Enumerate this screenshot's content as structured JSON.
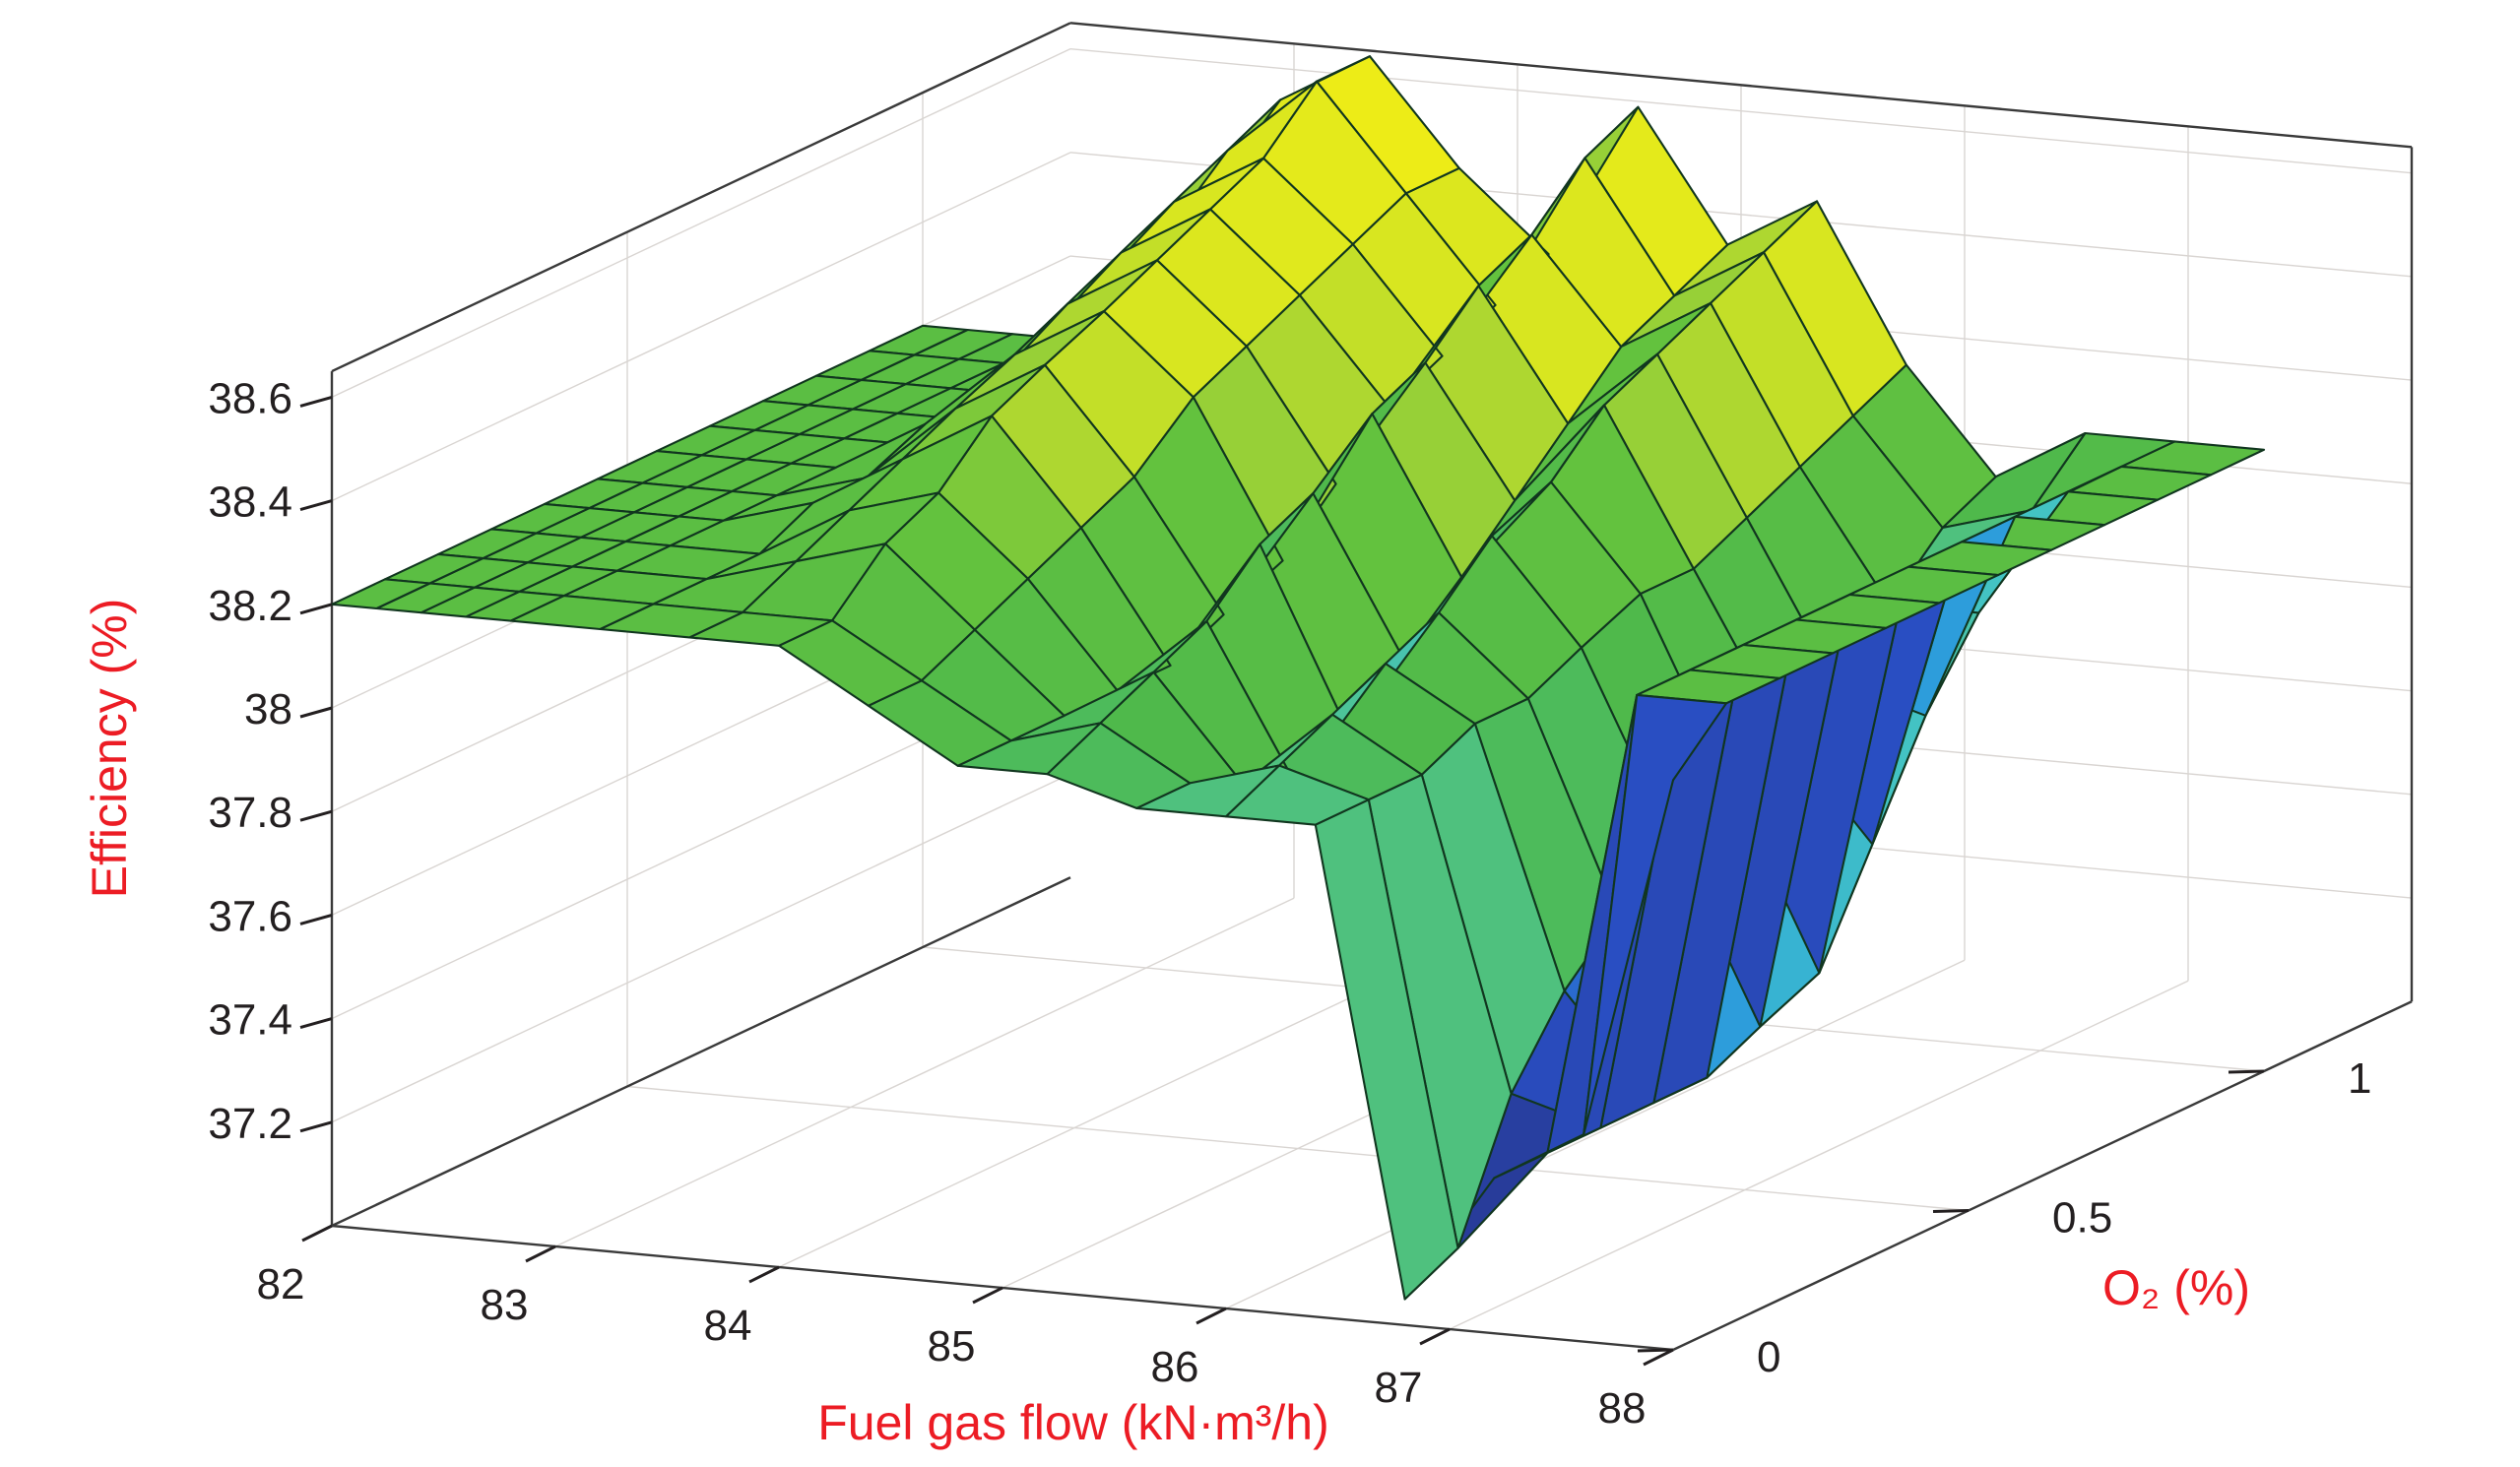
{
  "figure": {
    "background": "#ffffff",
    "frame_color": "#3a3a3a",
    "grid_color": "#d9d5d2"
  },
  "chart_data": {
    "type": "surface",
    "title": "",
    "xlabel": "Fuel gas flow (kN·m³/h)",
    "ylabel": "O₂ (%)",
    "zlabel": "Efficiency (%)",
    "axis_label_color": "#ec1c24",
    "tick_color": "#231f20",
    "mesh_line_color": "#11361f",
    "grid": true,
    "legend": "none",
    "xlim": [
      82,
      88
    ],
    "ylim": [
      0,
      1
    ],
    "zlim": [
      37.0,
      38.65
    ],
    "xticks": [
      "82",
      "83",
      "84",
      "85",
      "86",
      "87",
      "88"
    ],
    "yticks": [
      "0",
      "0.5",
      "1"
    ],
    "zticks": [
      "37.2",
      "37.4",
      "37.6",
      "37.8",
      "38",
      "38.2",
      "38.4",
      "38.6"
    ],
    "colormap": [
      [
        37.0,
        "#283a94"
      ],
      [
        37.45,
        "#2950c8"
      ],
      [
        37.62,
        "#2ea7de"
      ],
      [
        37.8,
        "#43c3c3"
      ],
      [
        37.93,
        "#4fc48c"
      ],
      [
        38.02,
        "#4db84d"
      ],
      [
        38.3,
        "#63c23e"
      ],
      [
        38.42,
        "#a2d335"
      ],
      [
        38.55,
        "#d8e620"
      ],
      [
        38.9,
        "#f5ef14"
      ]
    ],
    "x": [
      82,
      82.2,
      82.4,
      82.6,
      82.8,
      83.2,
      83.6,
      84,
      84.4,
      84.8,
      85.2,
      85.6,
      86,
      86.4,
      86.8,
      87.2,
      87.6,
      88
    ],
    "y": [
      0,
      0.09,
      0.18,
      0.27,
      0.36,
      0.45,
      0.55,
      0.64,
      0.73,
      0.82,
      0.91,
      1
    ],
    "z": [
      [
        38.2,
        38.2,
        38.2,
        38.2,
        38.2,
        38.2,
        38.2,
        38.2,
        38.1,
        38.0,
        38.0,
        37.95,
        37.95,
        37.95,
        37.05,
        37.3,
        37.4,
        38.1
      ],
      [
        38.2,
        38.2,
        38.2,
        38.2,
        38.2,
        38.2,
        38.2,
        38.2,
        38.1,
        38.0,
        38.05,
        37.95,
        38.0,
        37.95,
        37.1,
        37.3,
        38.2,
        38.2
      ],
      [
        38.2,
        38.2,
        38.2,
        38.2,
        38.2,
        38.2,
        38.25,
        38.3,
        38.15,
        38.0,
        38.1,
        37.9,
        38.05,
        37.95,
        37.35,
        37.3,
        38.2,
        38.2
      ],
      [
        38.2,
        38.2,
        38.2,
        38.2,
        38.2,
        38.2,
        38.3,
        38.35,
        38.2,
        38.0,
        38.15,
        37.85,
        38.1,
        38.0,
        37.5,
        37.3,
        38.2,
        38.2
      ],
      [
        38.2,
        38.2,
        38.2,
        38.2,
        38.2,
        38.25,
        38.35,
        38.45,
        38.25,
        38.0,
        38.25,
        37.9,
        38.15,
        38.0,
        37.6,
        37.3,
        38.2,
        38.2
      ],
      [
        38.2,
        38.2,
        38.2,
        38.2,
        38.2,
        38.25,
        38.4,
        38.5,
        38.3,
        38.05,
        38.3,
        38.0,
        38.25,
        38.05,
        37.7,
        37.35,
        38.2,
        38.2
      ],
      [
        38.2,
        38.2,
        38.2,
        38.2,
        38.2,
        38.3,
        38.45,
        38.55,
        38.4,
        38.1,
        38.4,
        38.1,
        38.3,
        38.1,
        37.75,
        37.4,
        38.2,
        38.2
      ],
      [
        38.2,
        38.2,
        38.2,
        38.2,
        38.2,
        38.3,
        38.5,
        38.6,
        38.45,
        38.2,
        38.45,
        38.2,
        38.4,
        38.1,
        37.8,
        37.6,
        38.2,
        38.2
      ],
      [
        38.2,
        38.2,
        38.2,
        38.2,
        38.2,
        38.35,
        38.55,
        38.65,
        38.5,
        38.3,
        38.55,
        38.3,
        38.45,
        38.15,
        37.85,
        37.8,
        38.2,
        38.2
      ],
      [
        38.2,
        38.2,
        38.2,
        38.2,
        38.2,
        38.4,
        38.6,
        38.7,
        38.55,
        38.35,
        38.6,
        38.4,
        38.5,
        38.2,
        37.95,
        37.95,
        38.2,
        38.2
      ],
      [
        38.2,
        38.2,
        38.2,
        38.2,
        38.2,
        38.4,
        38.65,
        38.8,
        38.6,
        38.4,
        38.7,
        38.45,
        38.55,
        38.25,
        38.05,
        38.1,
        38.2,
        38.2
      ],
      [
        38.2,
        38.2,
        38.2,
        38.2,
        38.2,
        38.45,
        38.7,
        38.8,
        38.6,
        38.45,
        38.75,
        38.5,
        38.6,
        38.3,
        38.1,
        38.2,
        38.2,
        38.2
      ]
    ]
  }
}
